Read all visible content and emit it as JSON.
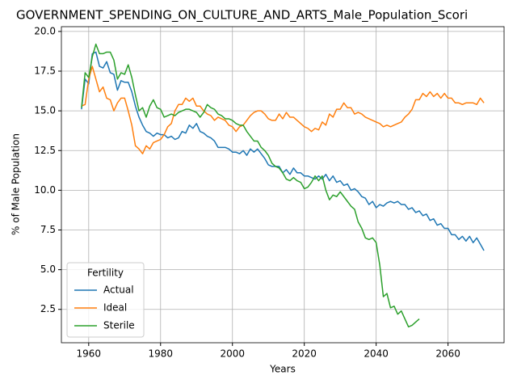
{
  "chart_data": {
    "type": "line",
    "title": "GOVERNMENT_SPENDING_ON_CULTURE_AND_ARTS_Male_Population_Scori",
    "xlabel": "Years",
    "ylabel": "% of Male Population",
    "legend_title": "Fertility",
    "legend": "lower left",
    "grid": true,
    "x": [
      1958,
      1959,
      1960,
      1961,
      1962,
      1963,
      1964,
      1965,
      1966,
      1967,
      1968,
      1969,
      1970,
      1971,
      1972,
      1973,
      1974,
      1975,
      1976,
      1977,
      1978,
      1979,
      1980,
      1981,
      1982,
      1983,
      1984,
      1985,
      1986,
      1987,
      1988,
      1989,
      1990,
      1991,
      1992,
      1993,
      1994,
      1995,
      1996,
      1997,
      1998,
      1999,
      2000,
      2001,
      2002,
      2003,
      2004,
      2005,
      2006,
      2007,
      2008,
      2009,
      2010,
      2011,
      2012,
      2013,
      2014,
      2015,
      2016,
      2017,
      2018,
      2019,
      2020,
      2021,
      2022,
      2023,
      2024,
      2025,
      2026,
      2027,
      2028,
      2029,
      2030,
      2031,
      2032,
      2033,
      2034,
      2035,
      2036,
      2037,
      2038,
      2039,
      2040,
      2041,
      2042,
      2043,
      2044,
      2045,
      2046,
      2047,
      2048,
      2049,
      2050,
      2051,
      2052,
      2053,
      2054,
      2055,
      2056,
      2057,
      2058,
      2059,
      2060,
      2061,
      2062,
      2063,
      2064,
      2065,
      2066,
      2067,
      2068,
      2069,
      2070
    ],
    "series": [
      {
        "name": "Actual",
        "color": "#1f77b4",
        "values": [
          15.1,
          17.0,
          16.7,
          18.6,
          18.7,
          17.8,
          17.7,
          18.1,
          17.4,
          17.3,
          16.3,
          16.9,
          16.8,
          16.8,
          16.2,
          15.3,
          14.6,
          14.1,
          13.7,
          13.6,
          13.4,
          13.6,
          13.5,
          13.5,
          13.3,
          13.4,
          13.2,
          13.3,
          13.7,
          13.6,
          14.1,
          13.9,
          14.2,
          13.7,
          13.6,
          13.4,
          13.3,
          13.1,
          12.7,
          12.7,
          12.7,
          12.6,
          12.4,
          12.4,
          12.3,
          12.5,
          12.2,
          12.6,
          12.4,
          12.6,
          12.3,
          12.0,
          11.6,
          11.5,
          11.5,
          11.5,
          11.1,
          11.3,
          11.0,
          11.4,
          11.1,
          11.1,
          10.9,
          10.9,
          10.8,
          10.7,
          10.9,
          10.7,
          11.0,
          10.6,
          10.9,
          10.5,
          10.6,
          10.3,
          10.4,
          10.0,
          10.1,
          9.9,
          9.6,
          9.5,
          9.1,
          9.3,
          8.9,
          9.1,
          9.0,
          9.2,
          9.3,
          9.2,
          9.3,
          9.1,
          9.1,
          8.8,
          8.9,
          8.6,
          8.7,
          8.4,
          8.5,
          8.1,
          8.2,
          7.8,
          7.9,
          7.6,
          7.6,
          7.2,
          7.2,
          6.9,
          7.1,
          6.8,
          7.1,
          6.7,
          7.0,
          6.6,
          6.2
        ]
      },
      {
        "name": "Ideal",
        "color": "#ff7f0e",
        "values": [
          15.3,
          15.4,
          17.0,
          17.8,
          17.0,
          16.2,
          16.5,
          15.8,
          15.7,
          15.0,
          15.5,
          15.8,
          15.8,
          15.0,
          14.1,
          12.8,
          12.6,
          12.3,
          12.8,
          12.6,
          13.0,
          13.1,
          13.2,
          13.5,
          14.0,
          14.2,
          15.0,
          15.4,
          15.4,
          15.8,
          15.6,
          15.8,
          15.3,
          15.3,
          15.0,
          14.8,
          14.7,
          14.4,
          14.6,
          14.5,
          14.4,
          14.1,
          14.0,
          13.7,
          14.0,
          14.1,
          14.4,
          14.7,
          14.9,
          15.0,
          15.0,
          14.8,
          14.5,
          14.4,
          14.4,
          14.8,
          14.5,
          14.9,
          14.6,
          14.6,
          14.4,
          14.2,
          14.0,
          13.9,
          13.7,
          13.9,
          13.8,
          14.3,
          14.1,
          14.8,
          14.6,
          15.1,
          15.1,
          15.5,
          15.2,
          15.2,
          14.8,
          14.9,
          14.8,
          14.6,
          14.5,
          14.4,
          14.3,
          14.2,
          14.0,
          14.1,
          14.0,
          14.1,
          14.2,
          14.3,
          14.6,
          14.8,
          15.1,
          15.7,
          15.7,
          16.1,
          15.9,
          16.2,
          15.9,
          16.1,
          15.8,
          16.1,
          15.8,
          15.8,
          15.5,
          15.5,
          15.4,
          15.5,
          15.5,
          15.5,
          15.4,
          15.8,
          15.5
        ]
      },
      {
        "name": "Sterile",
        "color": "#2ca02c",
        "values": [
          15.2,
          17.4,
          17.1,
          18.4,
          19.2,
          18.6,
          18.6,
          18.7,
          18.7,
          18.2,
          17.0,
          17.4,
          17.3,
          17.9,
          17.1,
          16.0,
          15.0,
          15.2,
          14.6,
          15.3,
          15.7,
          15.2,
          15.1,
          14.6,
          14.7,
          14.8,
          14.7,
          14.9,
          15.0,
          15.1,
          15.1,
          15.0,
          14.9,
          14.6,
          14.9,
          15.4,
          15.2,
          15.1,
          14.8,
          14.7,
          14.5,
          14.5,
          14.4,
          14.2,
          14.1,
          14.1,
          13.7,
          13.4,
          13.1,
          13.1,
          12.7,
          12.5,
          12.2,
          11.7,
          11.5,
          11.4,
          11.1,
          10.7,
          10.6,
          10.8,
          10.6,
          10.5,
          10.1,
          10.2,
          10.5,
          10.9,
          10.6,
          10.9,
          10.0,
          9.4,
          9.7,
          9.6,
          9.9,
          9.6,
          9.3,
          9.0,
          8.8,
          8.0,
          7.6,
          7.0,
          6.9,
          7.0,
          6.7,
          5.3,
          3.3,
          3.5,
          2.6,
          2.7,
          2.2,
          2.4,
          1.9,
          1.4,
          1.5,
          1.7,
          1.9,
          null,
          null,
          null,
          null,
          null,
          null,
          null,
          null,
          null,
          null,
          null,
          null,
          null,
          null,
          null,
          null,
          null,
          null
        ]
      }
    ],
    "xlim": [
      1952.4,
      2075.6
    ],
    "xticks": [
      1960,
      1980,
      2000,
      2020,
      2040,
      2060
    ],
    "ylim": [
      0.4,
      20.3
    ],
    "yticks": [
      2.5,
      {
        "value": 5,
        "label": "5.0"
      },
      7.5,
      {
        "value": 10,
        "label": "10.0"
      },
      12.5,
      {
        "value": 15,
        "label": "15.0"
      },
      17.5,
      {
        "value": 20,
        "label": "20.0"
      }
    ]
  }
}
